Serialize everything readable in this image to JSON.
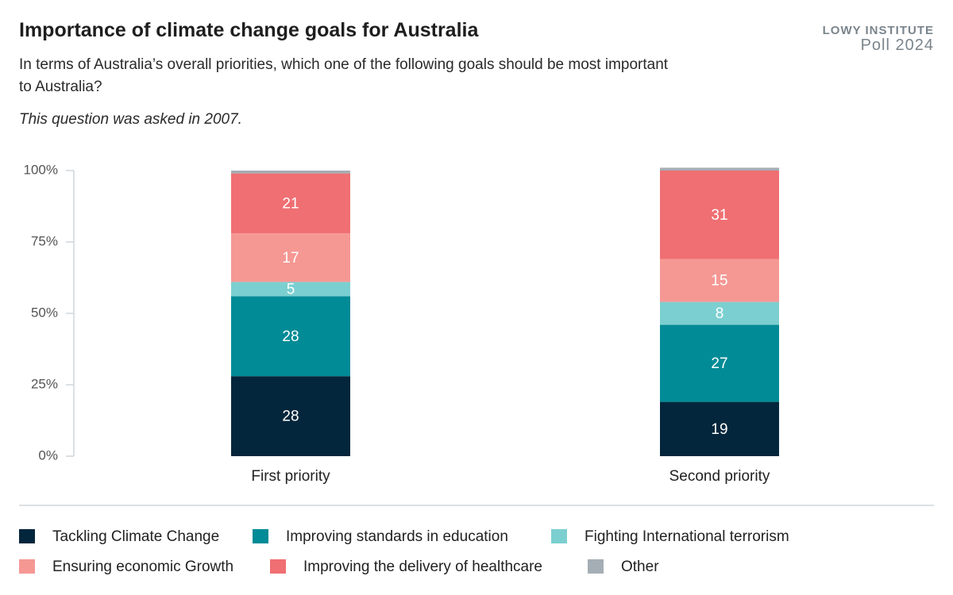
{
  "brand": {
    "name": "LOWY INSTITUTE",
    "edition": "Poll 2024"
  },
  "chart_data": {
    "type": "stacked-bar",
    "title": "Importance of climate change goals for Australia",
    "subtitle": "In terms of Australia’s overall priorities, which one of the following goals should be most important to Australia?",
    "note": "This question was asked in 2007.",
    "categories": [
      "First priority",
      "Second priority"
    ],
    "series": [
      {
        "name": "Tackling Climate Change",
        "color": "#03263c",
        "values": [
          28,
          19
        ]
      },
      {
        "name": "Improving standards in education",
        "color": "#008b96",
        "values": [
          28,
          27
        ]
      },
      {
        "name": "Fighting International terrorism",
        "color": "#7ccfd0",
        "values": [
          5,
          8
        ]
      },
      {
        "name": "Ensuring economic Growth",
        "color": "#f59894",
        "values": [
          17,
          15
        ]
      },
      {
        "name": "Improving the delivery of healthcare",
        "color": "#ef6f72",
        "values": [
          21,
          31
        ]
      },
      {
        "name": "Other",
        "color": "#a5aeb4",
        "values": [
          1,
          1
        ]
      }
    ],
    "ylim": [
      0,
      100
    ],
    "yticks": [
      {
        "value": 0,
        "label": "0%"
      },
      {
        "value": 25,
        "label": "25%"
      },
      {
        "value": 50,
        "label": "50%"
      },
      {
        "value": 75,
        "label": "75%"
      },
      {
        "value": 100,
        "label": "100%"
      }
    ]
  }
}
